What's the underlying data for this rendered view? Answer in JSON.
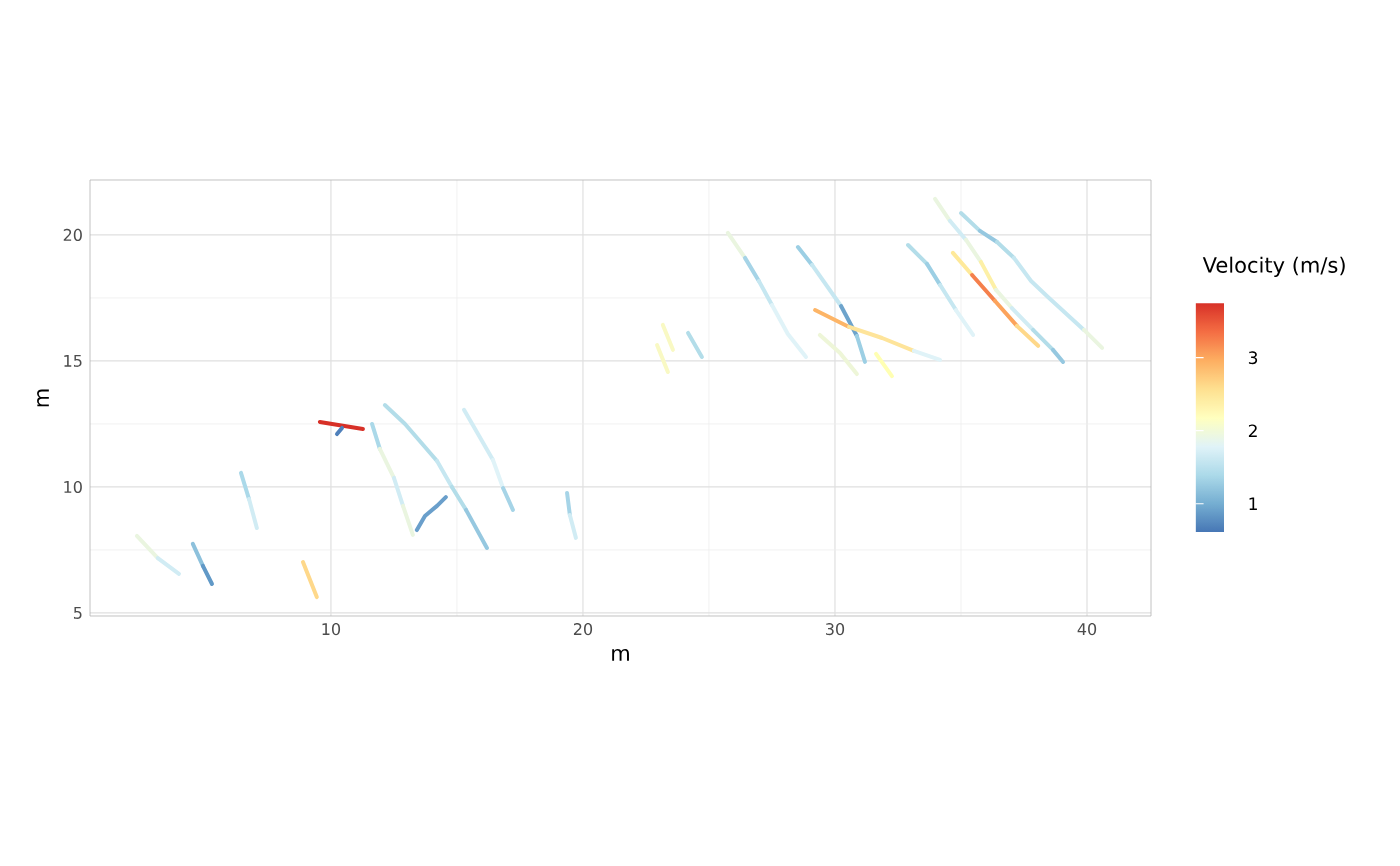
{
  "chart_data": {
    "type": "line",
    "xlabel": "m",
    "ylabel": "m",
    "clabel": "Velocity (m/s)",
    "xlim": [
      0.44,
      42.54
    ],
    "ylim": [
      4.88,
      22.18
    ],
    "xticks": [
      10,
      20,
      30,
      40
    ],
    "yticks": [
      5,
      10,
      15,
      20
    ],
    "clim": [
      0.6,
      3.75
    ],
    "cticks": [
      1,
      2,
      3
    ],
    "grid": true,
    "series": [
      {
        "color": "#eaf5e0",
        "x": [
          2.3,
          3.13
        ],
        "values": [
          8.06,
          7.18
        ]
      },
      {
        "color": "#d1ecf4",
        "x": [
          3.13,
          3.97
        ],
        "values": [
          7.18,
          6.55
        ]
      },
      {
        "color": "#8dc1dc",
        "x": [
          4.52,
          4.92
        ],
        "values": [
          7.74,
          6.87
        ]
      },
      {
        "color": "#6199c7",
        "x": [
          4.92,
          5.28
        ],
        "values": [
          6.87,
          6.15
        ]
      },
      {
        "color": "#abd9e9",
        "x": [
          6.43,
          6.75
        ],
        "values": [
          10.56,
          9.52
        ]
      },
      {
        "color": "#d1ecf4",
        "x": [
          6.75,
          7.06
        ],
        "values": [
          9.52,
          8.37
        ]
      },
      {
        "color": "#fed88a",
        "x": [
          8.89,
          9.44
        ],
        "values": [
          7.02,
          5.63
        ]
      },
      {
        "color": "#d73027",
        "x": [
          9.56,
          11.27
        ],
        "values": [
          12.58,
          12.3
        ]
      },
      {
        "color": "#4f80bb",
        "x": [
          10.24,
          10.44
        ],
        "values": [
          12.1,
          12.34
        ]
      },
      {
        "color": "#abd9e9",
        "x": [
          11.63,
          11.94
        ],
        "values": [
          12.5,
          11.51
        ]
      },
      {
        "color": "#eaf5e0",
        "x": [
          11.94,
          12.5
        ],
        "values": [
          11.51,
          10.36
        ]
      },
      {
        "color": "#d1ecf4",
        "x": [
          12.5,
          12.86
        ],
        "values": [
          10.36,
          9.25
        ]
      },
      {
        "color": "#eaf5e0",
        "x": [
          12.86,
          13.25
        ],
        "values": [
          9.25,
          8.1
        ]
      },
      {
        "color": "#b3dde9",
        "x": [
          12.14,
          12.94,
          14.21
        ],
        "values": [
          13.25,
          12.5,
          11.03
        ]
      },
      {
        "color": "#c6e7f1",
        "x": [
          14.21,
          14.8
        ],
        "values": [
          11.03,
          10.0
        ]
      },
      {
        "color": "#b3dde9",
        "x": [
          14.8,
          15.36
        ],
        "values": [
          10.0,
          9.09
        ]
      },
      {
        "color": "#96c8e0",
        "x": [
          15.36,
          16.19
        ],
        "values": [
          9.09,
          7.58
        ]
      },
      {
        "color": "#d1ecf4",
        "x": [
          15.28,
          16.43
        ],
        "values": [
          13.06,
          11.07
        ]
      },
      {
        "color": "#e0f3f8",
        "x": [
          16.43,
          16.83
        ],
        "values": [
          11.07,
          9.96
        ]
      },
      {
        "color": "#a6d4e7",
        "x": [
          16.83,
          17.22
        ],
        "values": [
          9.96,
          9.09
        ]
      },
      {
        "color": "#6a9fcb",
        "x": [
          13.41,
          13.73,
          14.21,
          14.56
        ],
        "values": [
          8.29,
          8.85,
          9.25,
          9.6
        ]
      },
      {
        "color": "#a6d4e7",
        "x": [
          19.37,
          19.48
        ],
        "values": [
          9.76,
          8.89
        ]
      },
      {
        "color": "#d1ecf4",
        "x": [
          19.48,
          19.72
        ],
        "values": [
          8.89,
          7.98
        ]
      },
      {
        "color": "#f9f9c4",
        "x": [
          22.94,
          23.37
        ],
        "values": [
          15.63,
          14.56
        ]
      },
      {
        "color": "#f9f9c4",
        "x": [
          23.17,
          23.57
        ],
        "values": [
          16.43,
          15.44
        ]
      },
      {
        "color": "#b3dde9",
        "x": [
          24.17,
          24.72
        ],
        "values": [
          16.11,
          15.16
        ]
      },
      {
        "color": "#eaf5e0",
        "x": [
          25.75,
          26.43
        ],
        "values": [
          20.08,
          19.09
        ]
      },
      {
        "color": "#a6d4e7",
        "x": [
          26.43,
          26.98
        ],
        "values": [
          19.09,
          18.17
        ]
      },
      {
        "color": "#c6e7f1",
        "x": [
          26.98,
          27.5
        ],
        "values": [
          18.17,
          17.22
        ]
      },
      {
        "color": "#e0f3f8",
        "x": [
          27.5,
          28.13,
          28.85
        ],
        "values": [
          17.22,
          16.07,
          15.16
        ]
      },
      {
        "color": "#9ccfe4",
        "x": [
          28.53,
          29.09
        ],
        "values": [
          19.52,
          18.81
        ]
      },
      {
        "color": "#c6e7f1",
        "x": [
          29.09,
          30.24
        ],
        "values": [
          18.81,
          17.18
        ]
      },
      {
        "color": "#6ea4cc",
        "x": [
          30.24,
          30.87
        ],
        "values": [
          17.18,
          15.99
        ]
      },
      {
        "color": "#9ccfe4",
        "x": [
          30.87,
          31.19
        ],
        "values": [
          15.99,
          14.96
        ]
      },
      {
        "color": "#fdb567",
        "x": [
          29.21,
          30.56
        ],
        "values": [
          17.02,
          16.35
        ]
      },
      {
        "color": "#fee49a",
        "x": [
          30.56,
          31.87,
          33.13
        ],
        "values": [
          16.35,
          15.91,
          15.4
        ]
      },
      {
        "color": "#e0f3f8",
        "x": [
          33.13,
          34.17
        ],
        "values": [
          15.4,
          15.04
        ]
      },
      {
        "color": "#eef6d8",
        "x": [
          29.4,
          30.2,
          30.87
        ],
        "values": [
          16.03,
          15.32,
          14.48
        ]
      },
      {
        "color": "#ffffb3",
        "x": [
          31.63,
          32.26
        ],
        "values": [
          15.28,
          14.4
        ]
      },
      {
        "color": "#b3dde9",
        "x": [
          32.9,
          33.65
        ],
        "values": [
          19.6,
          18.85
        ]
      },
      {
        "color": "#9ccfe4",
        "x": [
          33.65,
          34.17
        ],
        "values": [
          18.85,
          18.02
        ]
      },
      {
        "color": "#c6e7f1",
        "x": [
          34.17,
          34.8
        ],
        "values": [
          18.02,
          17.02
        ]
      },
      {
        "color": "#e0f3f8",
        "x": [
          34.8,
          35.48
        ],
        "values": [
          17.02,
          16.03
        ]
      },
      {
        "color": "#eaf5e0",
        "x": [
          33.97,
          34.56
        ],
        "values": [
          21.43,
          20.56
        ]
      },
      {
        "color": "#d1ecf4",
        "x": [
          34.56,
          35.2
        ],
        "values": [
          20.56,
          19.8
        ]
      },
      {
        "color": "#eaf5e0",
        "x": [
          35.2,
          35.79
        ],
        "values": [
          19.8,
          18.93
        ]
      },
      {
        "color": "#fdf0a6",
        "x": [
          35.79,
          36.39
        ],
        "values": [
          18.93,
          17.82
        ]
      },
      {
        "color": "#eaf5e0",
        "x": [
          36.39,
          37.02
        ],
        "values": [
          17.82,
          17.1
        ]
      },
      {
        "color": "#d1ecf4",
        "x": [
          37.02,
          37.86
        ],
        "values": [
          17.1,
          16.23
        ]
      },
      {
        "color": "#b3dde9",
        "x": [
          37.86,
          38.65
        ],
        "values": [
          16.23,
          15.44
        ]
      },
      {
        "color": "#96c8e0",
        "x": [
          38.65,
          39.05
        ],
        "values": [
          15.44,
          14.96
        ]
      },
      {
        "color": "#b3dde9",
        "x": [
          35.0,
          35.75
        ],
        "values": [
          20.87,
          20.16
        ]
      },
      {
        "color": "#96c8e0",
        "x": [
          35.75,
          36.43
        ],
        "values": [
          20.16,
          19.72
        ]
      },
      {
        "color": "#b3dde9",
        "x": [
          36.43,
          37.1
        ],
        "values": [
          19.72,
          19.09
        ]
      },
      {
        "color": "#c6e7f1",
        "x": [
          37.1,
          37.78,
          38.45,
          39.88
        ],
        "values": [
          19.09,
          18.17,
          17.54,
          16.23
        ]
      },
      {
        "color": "#eaf5e0",
        "x": [
          39.88,
          40.6
        ],
        "values": [
          16.23,
          15.52
        ]
      },
      {
        "color": "#fee99a",
        "x": [
          34.68,
          35.44
        ],
        "values": [
          19.29,
          18.41
        ]
      },
      {
        "color": "#f5804c",
        "x": [
          35.44,
          36.35
        ],
        "values": [
          18.41,
          17.38
        ]
      },
      {
        "color": "#fca35c",
        "x": [
          36.35,
          37.22
        ],
        "values": [
          17.38,
          16.39
        ]
      },
      {
        "color": "#fed88a",
        "x": [
          37.22,
          38.06
        ],
        "values": [
          16.39,
          15.6
        ]
      }
    ]
  }
}
